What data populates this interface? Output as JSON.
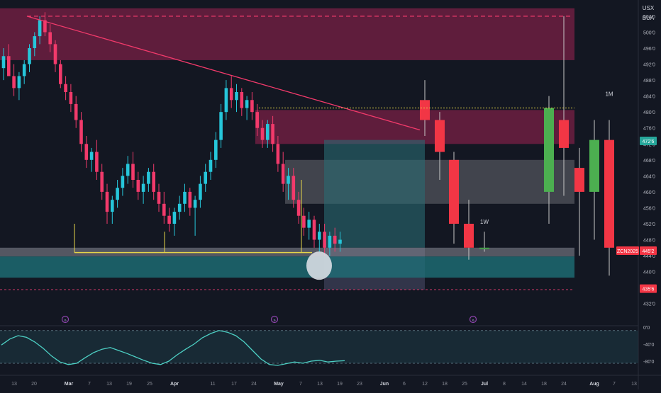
{
  "header": {
    "currency": "USX",
    "unit": "BUA"
  },
  "chart_data": {
    "type": "candlestick",
    "ylim": [
      430,
      507
    ],
    "y_ticks": [
      "504'0",
      "500'0",
      "496'0",
      "492'0",
      "488'0",
      "484'0",
      "480'0",
      "476'0",
      "472'0",
      "468'0",
      "464'0",
      "460'0",
      "456'0",
      "452'0",
      "448'0",
      "444'0",
      "440'0",
      "436'0",
      "432'0"
    ],
    "x_ticks": [
      "13",
      "20",
      "Mar",
      "7",
      "13",
      "19",
      "25",
      "Apr",
      "11",
      "17",
      "24",
      "May",
      "7",
      "13",
      "19",
      "23",
      "Jun",
      "6",
      "12",
      "18",
      "25",
      "Jul",
      "8",
      "14",
      "18",
      "24",
      "Aug",
      "7",
      "13"
    ],
    "price_labels": {
      "last": "472'6",
      "symbol": "ZCN2025",
      "symbol_price": "445'2",
      "lower": "435'6"
    },
    "timeframe_labels": [
      "1W",
      "1M"
    ],
    "daily_candles": [
      [
        491,
        496,
        488,
        494
      ],
      [
        494,
        497,
        490,
        489
      ],
      [
        489,
        492,
        484,
        486
      ],
      [
        486,
        490,
        483,
        489
      ],
      [
        489,
        493,
        487,
        492
      ],
      [
        492,
        497,
        490,
        496
      ],
      [
        496,
        500,
        494,
        499
      ],
      [
        499,
        504,
        497,
        503
      ],
      [
        503,
        505,
        499,
        500
      ],
      [
        500,
        502,
        495,
        497
      ],
      [
        497,
        498,
        490,
        492
      ],
      [
        492,
        493,
        486,
        487
      ],
      [
        487,
        489,
        483,
        485
      ],
      [
        485,
        487,
        480,
        482
      ],
      [
        482,
        484,
        476,
        478
      ],
      [
        478,
        480,
        470,
        472
      ],
      [
        472,
        474,
        466,
        468
      ],
      [
        468,
        471,
        465,
        470
      ],
      [
        470,
        473,
        463,
        465
      ],
      [
        465,
        467,
        458,
        460
      ],
      [
        460,
        462,
        452,
        455
      ],
      [
        455,
        459,
        452,
        458
      ],
      [
        458,
        463,
        456,
        461
      ],
      [
        461,
        466,
        459,
        464
      ],
      [
        464,
        469,
        462,
        467
      ],
      [
        467,
        470,
        461,
        463
      ],
      [
        463,
        465,
        458,
        460
      ],
      [
        460,
        464,
        457,
        462
      ],
      [
        462,
        466,
        460,
        465
      ],
      [
        465,
        467,
        458,
        460
      ],
      [
        460,
        462,
        455,
        457
      ],
      [
        457,
        460,
        452,
        454
      ],
      [
        454,
        456,
        450,
        452
      ],
      [
        452,
        456,
        449,
        455
      ],
      [
        455,
        459,
        453,
        457
      ],
      [
        457,
        462,
        455,
        460
      ],
      [
        460,
        461,
        454,
        456
      ],
      [
        456,
        459,
        449,
        458
      ],
      [
        458,
        464,
        456,
        462
      ],
      [
        462,
        467,
        460,
        465
      ],
      [
        465,
        470,
        463,
        468
      ],
      [
        468,
        475,
        466,
        473
      ],
      [
        473,
        482,
        471,
        480
      ],
      [
        480,
        488,
        478,
        486
      ],
      [
        486,
        489,
        481,
        483
      ],
      [
        483,
        487,
        480,
        485
      ],
      [
        485,
        486,
        479,
        481
      ],
      [
        481,
        484,
        478,
        483
      ],
      [
        483,
        485,
        478,
        480
      ],
      [
        480,
        482,
        474,
        476
      ],
      [
        476,
        478,
        471,
        473
      ],
      [
        473,
        478,
        471,
        477
      ],
      [
        477,
        479,
        470,
        472
      ],
      [
        472,
        474,
        465,
        467
      ],
      [
        467,
        470,
        460,
        462
      ],
      [
        462,
        466,
        458,
        464
      ],
      [
        464,
        466,
        456,
        458
      ],
      [
        458,
        460,
        452,
        454
      ],
      [
        454,
        456,
        449,
        451
      ],
      [
        451,
        455,
        448,
        453
      ],
      [
        453,
        454,
        446,
        448
      ],
      [
        448,
        452,
        445,
        450
      ],
      [
        450,
        452,
        444,
        446
      ],
      [
        446,
        450,
        444,
        449
      ],
      [
        449,
        451,
        445,
        447
      ],
      [
        447,
        450,
        445,
        448
      ]
    ],
    "weekly_candles": [
      [
        483,
        488,
        474,
        478
      ],
      [
        478,
        480,
        463,
        470
      ],
      [
        468,
        470,
        447,
        452
      ],
      [
        452,
        458,
        443,
        446
      ],
      [
        446,
        450,
        445,
        446
      ]
    ],
    "monthly_candles": [
      [
        460,
        484,
        452,
        481
      ],
      [
        478,
        504,
        459,
        471
      ],
      [
        466,
        471,
        444,
        460
      ],
      [
        460,
        478,
        448,
        473
      ],
      [
        473,
        478,
        439,
        446
      ]
    ],
    "oscillator": {
      "ticks": [
        "0'0",
        "-40'0",
        "-80'0"
      ],
      "range": [
        -100,
        0
      ],
      "values": [
        -42,
        -28,
        -20,
        -24,
        -35,
        -50,
        -68,
        -82,
        -88,
        -85,
        -72,
        -60,
        -52,
        -48,
        -55,
        -62,
        -70,
        -78,
        -85,
        -88,
        -80,
        -65,
        -52,
        -40,
        -25,
        -15,
        -8,
        -12,
        -20,
        -35,
        -55,
        -75,
        -88,
        -90,
        -86,
        -82,
        -85,
        -80,
        -78,
        -82,
        -80,
        -79
      ]
    }
  }
}
